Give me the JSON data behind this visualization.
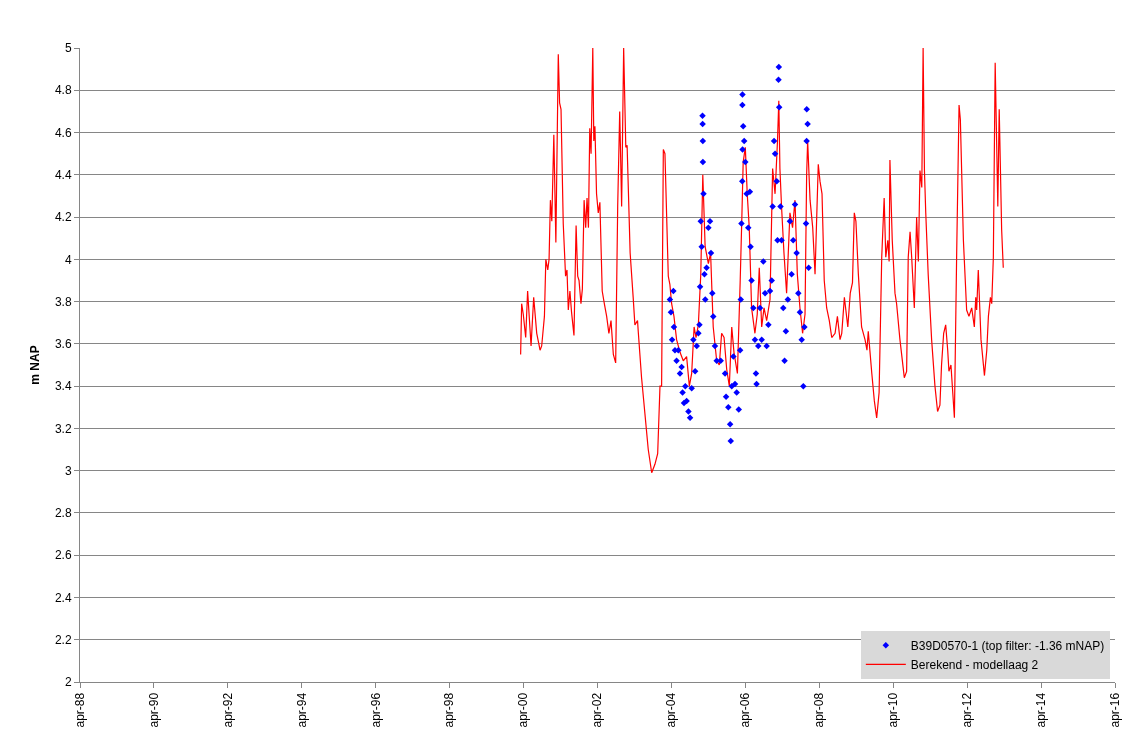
{
  "chart_data": {
    "type": "scatter",
    "ylabel": "m NAP",
    "xlim": [
      "1988-04-01",
      "2016-04-01"
    ],
    "xticks": [
      {
        "value": "1988-04-01",
        "label": "apr-88"
      },
      {
        "value": "1990-04-01",
        "label": "apr-90"
      },
      {
        "value": "1992-04-01",
        "label": "apr-92"
      },
      {
        "value": "1994-04-01",
        "label": "apr-94"
      },
      {
        "value": "1996-04-01",
        "label": "apr-96"
      },
      {
        "value": "1998-04-01",
        "label": "apr-98"
      },
      {
        "value": "2000-04-01",
        "label": "apr-00"
      },
      {
        "value": "2002-04-01",
        "label": "apr-02"
      },
      {
        "value": "2004-04-01",
        "label": "apr-04"
      },
      {
        "value": "2006-04-01",
        "label": "apr-06"
      },
      {
        "value": "2008-04-01",
        "label": "apr-08"
      },
      {
        "value": "2010-04-01",
        "label": "apr-10"
      },
      {
        "value": "2012-04-01",
        "label": "apr-12"
      },
      {
        "value": "2014-04-01",
        "label": "apr-14"
      },
      {
        "value": "2016-04-01",
        "label": "apr-16"
      }
    ],
    "ylim": [
      2,
      5
    ],
    "yticks": [
      2,
      2.2,
      2.4,
      2.6,
      2.8,
      3,
      3.2,
      3.4,
      3.6,
      3.8,
      4,
      4.2,
      4.4,
      4.6,
      4.8,
      5
    ],
    "grid": "y",
    "legend": "bottom right",
    "series": [
      {
        "marker": "diamond",
        "name": "B39D0570-1 (top filter: -1.36 mNAP)",
        "color": "#0000ff",
        "x": [
          "2004-03-17",
          "2004-03-27",
          "2004-04-07",
          "2004-04-20",
          "2004-04-26",
          "2004-05-06",
          "2004-05-22",
          "2004-06-08",
          "2004-06-25",
          "2004-07-11",
          "2004-07-20",
          "2004-08-03",
          "2004-08-16",
          "2004-08-29",
          "2004-09-16",
          "2004-10-02",
          "2004-10-18",
          "2004-11-04",
          "2004-11-21",
          "2004-12-07",
          "2004-12-23",
          "2005-01-03",
          "2005-01-09",
          "2005-01-16",
          "2005-01-25",
          "2005-02-02",
          "2005-02-03",
          "2005-02-05",
          "2005-02-06",
          "2005-02-12",
          "2005-02-21",
          "2005-03-01",
          "2005-03-14",
          "2005-04-01",
          "2005-04-17",
          "2005-04-27",
          "2005-05-10",
          "2005-05-19",
          "2005-06-05",
          "2005-06-22",
          "2005-08-01",
          "2005-09-13",
          "2005-09-23",
          "2005-10-15",
          "2005-11-02",
          "2005-11-08",
          "2005-11-18",
          "2005-12-04",
          "2005-12-20",
          "2006-01-06",
          "2006-01-26",
          "2006-02-09",
          "2006-02-15",
          "2006-02-22",
          "2006-03-02",
          "2006-03-03",
          "2006-03-04",
          "2006-03-05",
          "2006-03-11",
          "2006-03-21",
          "2006-04-01",
          "2006-04-14",
          "2006-04-30",
          "2006-05-16",
          "2006-05-23",
          "2006-06-02",
          "2006-06-19",
          "2006-07-05",
          "2006-07-15",
          "2006-07-21",
          "2006-08-07",
          "2006-08-24",
          "2006-09-10",
          "2006-09-26",
          "2006-10-13",
          "2006-10-29",
          "2006-11-15",
          "2006-12-01",
          "2006-12-18",
          "2006-12-27",
          "2007-01-10",
          "2007-01-20",
          "2007-02-06",
          "2007-02-13",
          "2007-02-23",
          "2007-02-26",
          "2007-03-02",
          "2007-03-15",
          "2007-03-25",
          "2007-04-11",
          "2007-04-24",
          "2007-05-07",
          "2007-05-26",
          "2007-06-16",
          "2007-07-02",
          "2007-07-18",
          "2007-08-05",
          "2007-08-21",
          "2007-09-07",
          "2007-09-23",
          "2007-10-10",
          "2007-10-26",
          "2007-11-06",
          "2007-11-22",
          "2007-11-28",
          "2007-11-29",
          "2007-12-08",
          "2007-12-18"
        ],
        "values": [
          3.81,
          3.75,
          3.62,
          3.85,
          3.68,
          3.57,
          3.52,
          3.57,
          3.46,
          3.49,
          3.37,
          3.32,
          3.4,
          3.33,
          3.28,
          3.25,
          3.39,
          3.62,
          3.47,
          3.59,
          3.65,
          3.69,
          3.87,
          4.18,
          4.06,
          4.68,
          4.64,
          4.56,
          4.46,
          4.31,
          3.93,
          3.81,
          3.96,
          4.15,
          4.18,
          4.03,
          3.84,
          3.73,
          3.59,
          3.52,
          3.52,
          3.46,
          3.35,
          3.3,
          3.22,
          3.14,
          3.4,
          3.54,
          3.41,
          3.37,
          3.29,
          3.57,
          3.81,
          4.17,
          4.37,
          4.73,
          4.78,
          4.52,
          4.63,
          4.56,
          4.46,
          4.31,
          4.15,
          4.32,
          4.06,
          3.9,
          3.77,
          3.62,
          3.46,
          3.41,
          3.59,
          3.77,
          3.62,
          3.99,
          3.84,
          3.59,
          3.69,
          3.85,
          3.9,
          4.25,
          4.56,
          4.5,
          4.37,
          4.09,
          4.85,
          4.91,
          4.72,
          4.25,
          4.09,
          3.77,
          3.52,
          3.66,
          3.81,
          4.18,
          3.93,
          4.09,
          4.26,
          4.03,
          3.84,
          3.75,
          3.62,
          3.4,
          3.68,
          4.17,
          4.56,
          4.71,
          4.64,
          3.96
        ]
      },
      {
        "type": "line",
        "name": "Berekend - modellaag 2",
        "color": "#ff0000",
        "x": [
          "2000-03-03",
          "2000-03-13",
          "2000-03-29",
          "2000-04-22",
          "2000-05-11",
          "2000-06-14",
          "2000-07-10",
          "2000-08-09",
          "2000-09-11",
          "2000-09-27",
          "2000-10-24",
          "2000-11-07",
          "2000-11-26",
          "2000-12-09",
          "2000-12-22",
          "2001-01-05",
          "2001-01-25",
          "2001-02-14",
          "2001-03-10",
          "2001-03-23",
          "2001-04-06",
          "2001-04-28",
          "2001-05-21",
          "2001-06-04",
          "2001-06-17",
          "2001-07-03",
          "2001-07-19",
          "2001-08-12",
          "2001-09-02",
          "2001-09-18",
          "2001-10-01",
          "2001-10-20",
          "2001-11-03",
          "2001-11-20",
          "2001-12-06",
          "2001-12-19",
          "2002-01-02",
          "2002-01-15",
          "2002-01-28",
          "2002-02-14",
          "2002-02-24",
          "2002-03-07",
          "2002-03-23",
          "2002-04-09",
          "2002-04-25",
          "2002-05-18",
          "2002-06-08",
          "2002-07-01",
          "2002-07-23",
          "2002-08-13",
          "2002-09-05",
          "2002-09-28",
          "2002-10-18",
          "2002-11-07",
          "2002-11-26",
          "2002-12-16",
          "2003-01-06",
          "2003-01-19",
          "2003-02-18",
          "2003-03-20",
          "2003-04-06",
          "2003-05-02",
          "2003-05-09",
          "2003-06-11",
          "2003-07-14",
          "2003-08-16",
          "2003-09-19",
          "2003-10-21",
          "2003-11-17",
          "2003-12-10",
          "2003-12-26",
          "2004-01-12",
          "2004-01-28",
          "2004-03-01",
          "2004-03-17",
          "2004-04-03",
          "2004-04-26",
          "2004-05-22",
          "2004-06-25",
          "2004-07-27",
          "2004-08-29",
          "2004-09-25",
          "2004-10-18",
          "2004-11-11",
          "2004-11-30",
          "2004-12-23",
          "2005-01-16",
          "2005-02-05",
          "2005-02-28",
          "2005-04-01",
          "2005-04-23",
          "2005-05-19",
          "2005-06-22",
          "2005-07-18",
          "2005-08-10",
          "2005-09-03",
          "2005-09-29",
          "2005-10-25",
          "2005-11-18",
          "2005-12-10",
          "2006-01-13",
          "2006-02-09",
          "2006-02-25",
          "2006-03-11",
          "2006-04-01",
          "2006-04-20",
          "2006-05-10",
          "2006-06-02",
          "2006-07-05",
          "2006-07-28",
          "2006-08-17",
          "2006-09-10",
          "2006-10-03",
          "2006-10-29",
          "2006-12-01",
          "2006-12-27",
          "2007-01-20",
          "2007-02-13",
          "2007-02-26",
          "2007-03-09",
          "2007-03-25",
          "2007-04-18",
          "2007-05-14",
          "2007-06-16",
          "2007-07-12",
          "2007-08-05",
          "2007-08-28",
          "2007-09-23",
          "2007-10-19",
          "2007-11-12",
          "2007-11-28",
          "2007-12-08",
          "2008-01-01",
          "2008-01-27",
          "2008-02-19",
          "2008-03-22",
          "2008-04-08",
          "2008-04-28",
          "2008-05-20",
          "2008-06-13",
          "2008-07-09",
          "2008-08-02",
          "2008-09-04",
          "2008-09-27",
          "2008-10-23",
          "2008-11-09",
          "2008-12-05",
          "2009-01-08",
          "2009-02-01",
          "2009-02-23",
          "2009-03-13",
          "2009-03-29",
          "2009-04-22",
          "2009-05-24",
          "2009-06-27",
          "2009-07-16",
          "2009-07-29",
          "2009-09-02",
          "2009-09-27",
          "2009-10-20",
          "2009-11-13",
          "2009-12-09",
          "2010-01-02",
          "2010-01-18",
          "2010-02-07",
          "2010-02-20",
          "2010-02-28",
          "2010-03-23",
          "2010-04-19",
          "2010-05-05",
          "2010-06-07",
          "2010-07-20",
          "2010-08-12",
          "2010-08-28",
          "2010-09-15",
          "2010-10-01",
          "2010-10-27",
          "2010-11-19",
          "2010-12-06",
          "2010-12-22",
          "2011-01-09",
          "2011-01-22",
          "2011-02-04",
          "2011-02-17",
          "2011-03-13",
          "2011-04-16",
          "2011-05-19",
          "2011-06-14",
          "2011-07-07",
          "2011-07-23",
          "2011-08-13",
          "2011-09-02",
          "2011-09-22",
          "2011-10-04",
          "2011-10-24",
          "2011-11-27",
          "2011-12-19",
          "2012-01-12",
          "2012-01-25",
          "2012-02-24",
          "2012-03-27",
          "2012-04-19",
          "2012-05-16",
          "2012-06-11",
          "2012-06-25",
          "2012-07-04",
          "2012-07-20",
          "2012-08-16",
          "2012-09-19",
          "2012-10-12",
          "2012-10-28",
          "2012-11-17",
          "2012-11-30",
          "2012-12-16",
          "2013-01-03",
          "2013-01-29",
          "2013-02-12",
          "2013-03-08",
          "2013-03-24"
        ],
        "values": [
          3.55,
          3.79,
          3.74,
          3.63,
          3.85,
          3.59,
          3.82,
          3.65,
          3.57,
          3.59,
          3.73,
          4.0,
          3.95,
          4.0,
          4.28,
          4.18,
          4.59,
          4.08,
          4.97,
          4.74,
          4.71,
          4.17,
          3.92,
          3.95,
          3.76,
          3.85,
          3.75,
          3.64,
          4.16,
          3.92,
          3.9,
          3.79,
          3.86,
          4.28,
          4.15,
          4.29,
          4.15,
          4.62,
          4.5,
          5.0,
          4.56,
          4.63,
          4.31,
          4.22,
          4.27,
          3.85,
          3.79,
          3.73,
          3.65,
          3.71,
          3.55,
          3.51,
          4.25,
          4.7,
          4.25,
          5.0,
          4.53,
          4.54,
          4.03,
          3.82,
          3.69,
          3.71,
          3.66,
          3.44,
          3.27,
          3.1,
          2.99,
          3.03,
          3.08,
          3.4,
          3.4,
          4.52,
          4.5,
          3.92,
          3.88,
          3.79,
          3.73,
          3.62,
          3.56,
          3.52,
          3.54,
          3.4,
          3.46,
          3.68,
          3.63,
          3.69,
          3.93,
          4.4,
          4.06,
          3.98,
          4.03,
          3.68,
          3.52,
          3.5,
          3.65,
          3.63,
          3.48,
          3.4,
          3.68,
          3.56,
          3.46,
          3.89,
          4.18,
          4.46,
          4.53,
          4.31,
          4.15,
          3.77,
          3.65,
          3.74,
          3.96,
          3.68,
          3.77,
          3.71,
          3.81,
          4.43,
          4.31,
          4.56,
          4.75,
          4.43,
          4.25,
          4.03,
          3.84,
          4.22,
          4.15,
          4.28,
          3.93,
          3.77,
          3.65,
          3.74,
          4.4,
          4.56,
          4.28,
          4.15,
          3.93,
          4.45,
          4.37,
          4.31,
          3.9,
          3.77,
          3.71,
          3.63,
          3.65,
          3.73,
          3.62,
          3.65,
          3.82,
          3.68,
          3.84,
          3.89,
          4.22,
          4.18,
          3.93,
          3.68,
          3.62,
          3.57,
          3.66,
          3.46,
          3.33,
          3.25,
          3.37,
          4.01,
          4.29,
          4.01,
          4.09,
          3.99,
          4.47,
          4.09,
          3.84,
          3.79,
          3.62,
          3.44,
          3.47,
          4.01,
          4.13,
          4.01,
          3.77,
          4.2,
          3.99,
          4.42,
          4.34,
          5.0,
          4.42,
          4.22,
          3.93,
          3.62,
          3.4,
          3.28,
          3.31,
          3.5,
          3.65,
          3.69,
          3.57,
          3.47,
          3.5,
          3.25,
          4.01,
          4.73,
          4.66,
          4.09,
          3.76,
          3.73,
          3.77,
          3.68,
          3.82,
          3.76,
          3.95,
          3.62,
          3.45,
          3.57,
          3.73,
          3.82,
          3.79,
          4.01,
          4.93,
          4.25,
          4.71,
          4.14,
          3.96
        ]
      }
    ]
  }
}
